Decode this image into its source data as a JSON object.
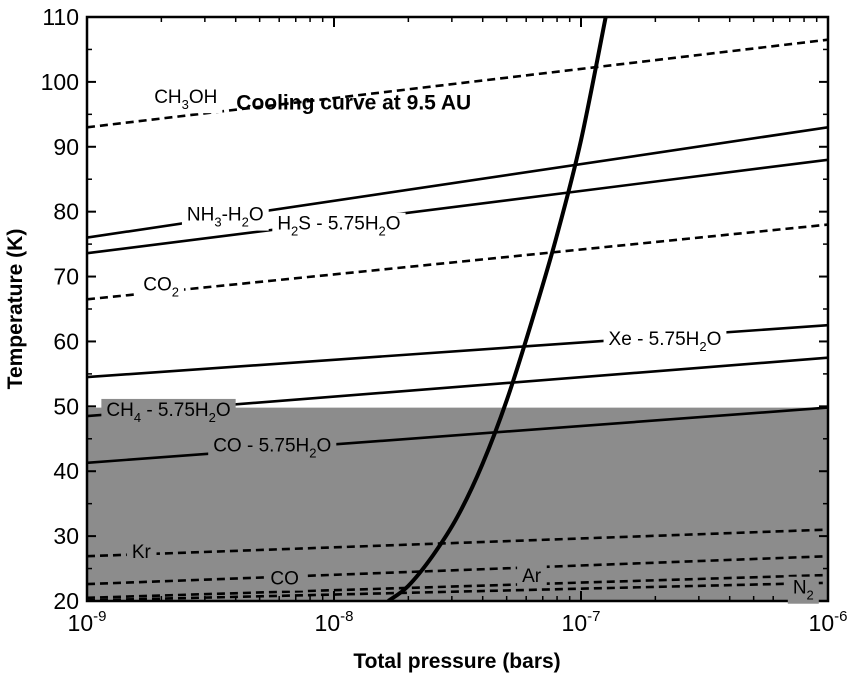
{
  "chart_data": {
    "type": "line",
    "title": "",
    "xlabel": "Total pressure (bars)",
    "ylabel": "Temperature (K)",
    "xscale": "log",
    "xlim_log10": [
      -9,
      -6
    ],
    "ylim": [
      20,
      110
    ],
    "x_ticks": [
      {
        "base": "10",
        "exp": "-9",
        "log": -9
      },
      {
        "base": "10",
        "exp": "-8",
        "log": -8
      },
      {
        "base": "10",
        "exp": "-7",
        "log": -7
      },
      {
        "base": "10",
        "exp": "-6",
        "log": -6
      }
    ],
    "y_ticks": [
      20,
      30,
      40,
      50,
      60,
      70,
      80,
      90,
      100,
      110
    ],
    "shaded_region": {
      "y_from": 20,
      "y_to": 49.8,
      "color": "#8c8c8c"
    },
    "series": [
      {
        "name": "CH3OH",
        "style": "dashed",
        "log_pressure": [
          -9,
          -6
        ],
        "temperature": [
          93.0,
          106.5
        ],
        "label": {
          "parts": [
            {
              "t": "CH"
            },
            {
              "t": "3",
              "sub": true
            },
            {
              "t": "OH"
            }
          ],
          "at_log": -8.6,
          "at_t": 97.8,
          "size": 19
        }
      },
      {
        "name": "NH3-H2O",
        "style": "solid",
        "log_pressure": [
          -9,
          -6
        ],
        "temperature": [
          76.0,
          93.0
        ],
        "label": {
          "parts": [
            {
              "t": "NH"
            },
            {
              "t": "3",
              "sub": true
            },
            {
              "t": "-H"
            },
            {
              "t": "2",
              "sub": true
            },
            {
              "t": "O"
            }
          ],
          "at_log": -8.44,
          "at_t": 79.7,
          "size": 19
        }
      },
      {
        "name": "H2S - 5.75H2O",
        "style": "solid",
        "log_pressure": [
          -9,
          -6
        ],
        "temperature": [
          73.6,
          88.0
        ],
        "label": {
          "parts": [
            {
              "t": "H"
            },
            {
              "t": "2",
              "sub": true
            },
            {
              "t": "S - 5.75H"
            },
            {
              "t": "2",
              "sub": true
            },
            {
              "t": "O"
            }
          ],
          "at_log": -7.98,
          "at_t": 78.3,
          "size": 19
        }
      },
      {
        "name": "CO2",
        "style": "dashed",
        "log_pressure": [
          -9,
          -6
        ],
        "temperature": [
          66.5,
          78.0
        ],
        "label": {
          "parts": [
            {
              "t": "CO"
            },
            {
              "t": "2",
              "sub": true
            }
          ],
          "at_log": -8.7,
          "at_t": 68.9,
          "size": 19
        }
      },
      {
        "name": "Xe - 5.75H2O",
        "style": "solid",
        "log_pressure": [
          -9,
          -6
        ],
        "temperature": [
          54.5,
          62.5
        ],
        "label": {
          "parts": [
            {
              "t": "Xe - 5.75H"
            },
            {
              "t": "2",
              "sub": true
            },
            {
              "t": "O"
            }
          ],
          "at_log": -6.66,
          "at_t": 60.5,
          "size": 19
        }
      },
      {
        "name": "CH4 - 5.75H2O",
        "style": "solid",
        "log_pressure": [
          -9,
          -6
        ],
        "temperature": [
          48.5,
          57.5
        ],
        "label": {
          "parts": [
            {
              "t": "CH"
            },
            {
              "t": "4",
              "sub": true
            },
            {
              "t": " - 5.75H"
            },
            {
              "t": "2",
              "sub": true
            },
            {
              "t": "O"
            }
          ],
          "at_log": -8.67,
          "at_t": 49.6,
          "size": 19
        }
      },
      {
        "name": "CO - 5.75H2O",
        "style": "solid",
        "log_pressure": [
          -9,
          -6
        ],
        "temperature": [
          41.3,
          49.8
        ],
        "label": {
          "parts": [
            {
              "t": "CO - 5.75H"
            },
            {
              "t": "2",
              "sub": true
            },
            {
              "t": "O"
            }
          ],
          "at_log": -8.25,
          "at_t": 44.1,
          "size": 19
        }
      },
      {
        "name": "Kr",
        "style": "dashed",
        "log_pressure": [
          -9,
          -6
        ],
        "temperature": [
          26.9,
          31.0
        ],
        "label": {
          "parts": [
            {
              "t": "Kr"
            }
          ],
          "at_log": -8.78,
          "at_t": 27.7,
          "size": 19
        }
      },
      {
        "name": "CO",
        "style": "dashed",
        "log_pressure": [
          -9,
          -6
        ],
        "temperature": [
          22.6,
          26.9
        ],
        "label": {
          "parts": [
            {
              "t": "CO"
            }
          ],
          "at_log": -8.2,
          "at_t": 23.6,
          "size": 19
        }
      },
      {
        "name": "Ar",
        "style": "dashed",
        "log_pressure": [
          -9,
          -6
        ],
        "temperature": [
          20.5,
          24.0
        ],
        "label": {
          "parts": [
            {
              "t": "Ar"
            }
          ],
          "at_log": -7.2,
          "at_t": 24.0,
          "size": 19
        }
      },
      {
        "name": "N2",
        "style": "dashed",
        "log_pressure": [
          -9,
          -6
        ],
        "temperature": [
          20.1,
          22.8
        ],
        "label": {
          "parts": [
            {
              "t": "N"
            },
            {
              "t": "2",
              "sub": true
            }
          ],
          "at_log": -6.1,
          "at_t": 22.2,
          "size": 19
        }
      }
    ],
    "cooling_curve": {
      "name": "Cooling curve at 9.5 AU",
      "log_pressure": [
        -7.78,
        -7.7,
        -7.6,
        -7.5,
        -7.4,
        -7.3,
        -7.2,
        -7.1,
        -7.0,
        -6.9
      ],
      "temperature": [
        20.0,
        22.3,
        27.0,
        33.0,
        41.0,
        51.0,
        63.0,
        76.0,
        91.0,
        110.0
      ],
      "label_at_log": -7.92,
      "label_at_t": 97.0
    }
  }
}
